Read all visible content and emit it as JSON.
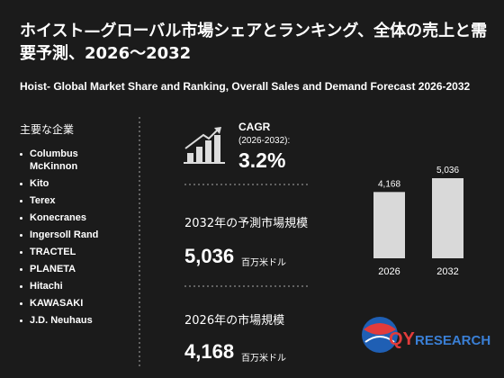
{
  "header": {
    "title": "ホイスト—グローバル市場シェアとランキング、全体の売上と需要予測、2026～2032",
    "subtitle": "Hoist- Global Market Share and Ranking, Overall Sales and Demand Forecast 2026-2032"
  },
  "companies": {
    "heading": "主要な企業",
    "items": [
      "Columbus McKinnon",
      "Kito",
      "Terex",
      "Konecranes",
      "Ingersoll Rand",
      "TRACTEL",
      "PLANETA",
      "Hitachi",
      "KAWASAKI",
      "J.D. Neuhaus"
    ]
  },
  "cagr": {
    "label": "CAGR",
    "period": "(2026-2032):",
    "value": "3.2%"
  },
  "forecast": {
    "label": "2032年の予測市場規模",
    "value": "5,036",
    "unit": "百万米ドル"
  },
  "current": {
    "label": "2026年の市場規模",
    "value": "4,168",
    "unit": "百万米ドル"
  },
  "chart_data": {
    "type": "bar",
    "categories": [
      "2026",
      "2032"
    ],
    "values": [
      4168,
      5036
    ],
    "value_labels": [
      "4,168",
      "5,036"
    ],
    "color": "#d9d9d9"
  },
  "logo": {
    "brand": "QY",
    "suffix": "RESEARCH"
  }
}
